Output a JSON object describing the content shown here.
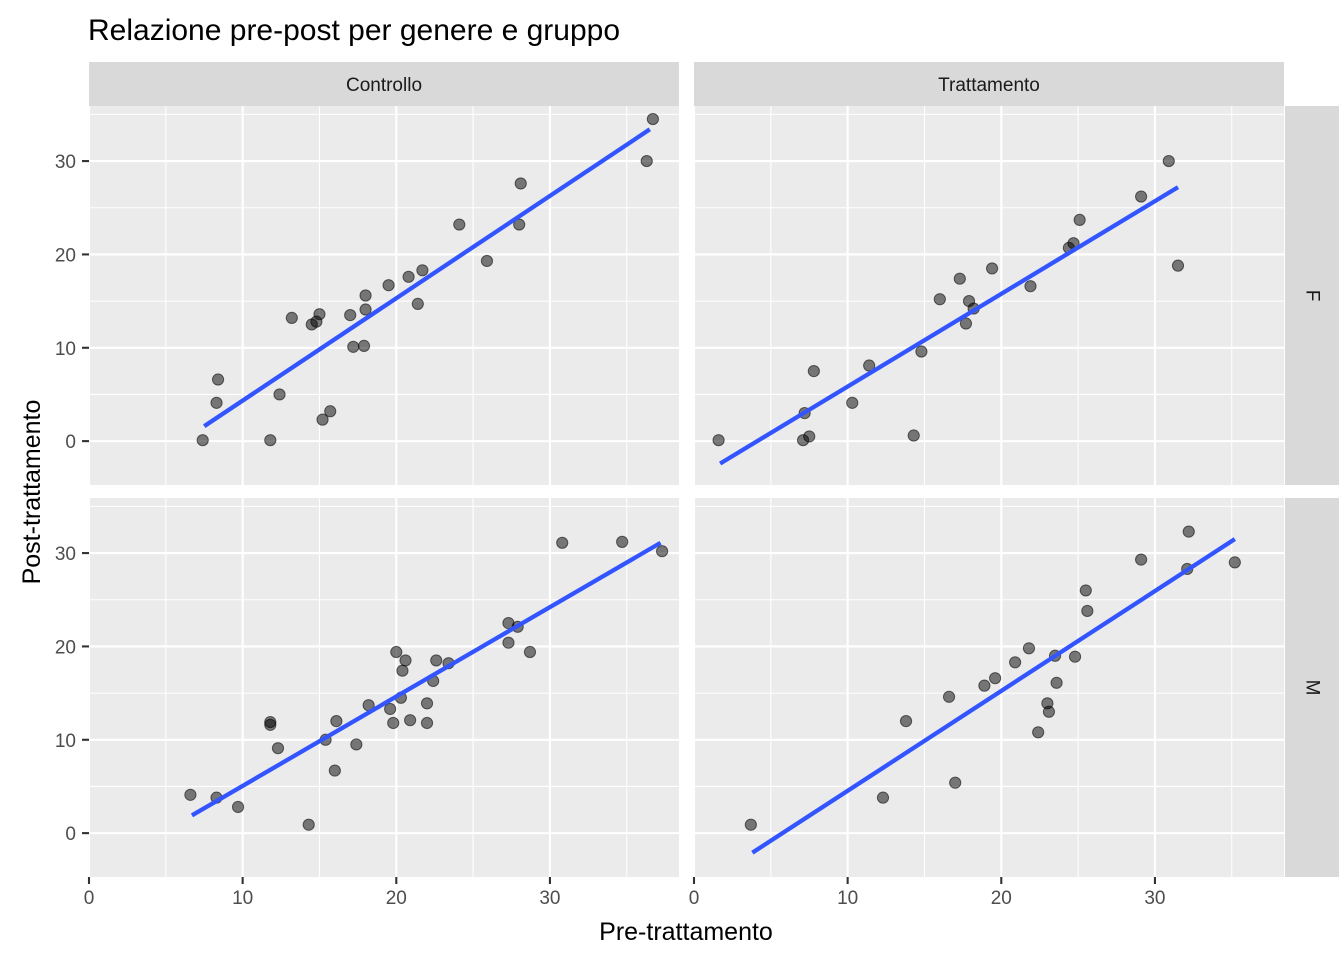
{
  "chart_data": {
    "type": "scatter",
    "title": "Relazione pre-post per genere e gruppo",
    "xlabel": "Pre-trattamento",
    "ylabel": "Post-trattamento",
    "xlim": [
      0,
      38.4
    ],
    "ylim": [
      -4.7,
      35.9
    ],
    "x_ticks": [
      0,
      10,
      20,
      30
    ],
    "y_ticks": [
      0,
      10,
      20,
      30
    ],
    "x_tick_labels": [
      "0",
      "10",
      "20",
      "30"
    ],
    "y_tick_labels": [
      "0",
      "10",
      "20",
      "30"
    ],
    "grid": true,
    "column_facets": [
      "Controllo",
      "Trattamento"
    ],
    "row_facets": [
      "F",
      "M"
    ],
    "colors": {
      "points": "#000000",
      "fit_line": "#3355ff",
      "panel": "#ebebeb",
      "strip": "#d9d9d9"
    },
    "panels": [
      {
        "group": "Controllo",
        "sex": "F",
        "fit": {
          "x": [
            7.5,
            36.5
          ],
          "y": [
            1.6,
            33.4
          ]
        },
        "points": [
          [
            7.4,
            0.1
          ],
          [
            8.3,
            4.1
          ],
          [
            8.4,
            6.6
          ],
          [
            11.8,
            0.1
          ],
          [
            12.4,
            5.0
          ],
          [
            13.2,
            13.2
          ],
          [
            14.5,
            12.5
          ],
          [
            14.8,
            12.8
          ],
          [
            15.0,
            13.6
          ],
          [
            15.2,
            2.3
          ],
          [
            15.7,
            3.2
          ],
          [
            17.0,
            13.5
          ],
          [
            17.2,
            10.1
          ],
          [
            17.9,
            10.2
          ],
          [
            18.0,
            14.1
          ],
          [
            18.0,
            15.6
          ],
          [
            19.5,
            16.7
          ],
          [
            20.8,
            17.6
          ],
          [
            21.4,
            14.7
          ],
          [
            21.7,
            18.3
          ],
          [
            24.1,
            23.2
          ],
          [
            25.9,
            19.3
          ],
          [
            28.0,
            23.2
          ],
          [
            28.1,
            27.6
          ],
          [
            36.3,
            30.0
          ],
          [
            36.7,
            34.5
          ]
        ]
      },
      {
        "group": "Trattamento",
        "sex": "F",
        "fit": {
          "x": [
            1.7,
            31.5
          ],
          "y": [
            -2.4,
            27.2
          ]
        },
        "points": [
          [
            1.6,
            0.1
          ],
          [
            7.1,
            0.1
          ],
          [
            7.2,
            3.0
          ],
          [
            7.5,
            0.5
          ],
          [
            7.8,
            7.5
          ],
          [
            10.3,
            4.1
          ],
          [
            11.4,
            8.1
          ],
          [
            14.3,
            0.6
          ],
          [
            14.8,
            9.6
          ],
          [
            16.0,
            15.2
          ],
          [
            17.3,
            17.4
          ],
          [
            17.7,
            12.6
          ],
          [
            17.9,
            15.0
          ],
          [
            18.2,
            14.2
          ],
          [
            19.4,
            18.5
          ],
          [
            21.9,
            16.6
          ],
          [
            24.4,
            20.7
          ],
          [
            24.7,
            21.2
          ],
          [
            25.1,
            23.7
          ],
          [
            29.1,
            26.2
          ],
          [
            30.9,
            30.0
          ],
          [
            31.5,
            18.8
          ]
        ]
      },
      {
        "group": "Controllo",
        "sex": "M",
        "fit": {
          "x": [
            6.7,
            37.2
          ],
          "y": [
            1.9,
            31.1
          ]
        },
        "points": [
          [
            6.6,
            4.1
          ],
          [
            8.3,
            3.8
          ],
          [
            9.7,
            2.8
          ],
          [
            11.8,
            11.6
          ],
          [
            11.8,
            11.9
          ],
          [
            12.3,
            9.1
          ],
          [
            14.3,
            0.9
          ],
          [
            15.4,
            10.0
          ],
          [
            16.0,
            6.7
          ],
          [
            16.1,
            12.0
          ],
          [
            17.4,
            9.5
          ],
          [
            18.2,
            13.7
          ],
          [
            19.6,
            13.3
          ],
          [
            19.8,
            11.8
          ],
          [
            20.0,
            19.4
          ],
          [
            20.3,
            14.5
          ],
          [
            20.4,
            17.4
          ],
          [
            20.6,
            18.5
          ],
          [
            20.9,
            12.1
          ],
          [
            22.0,
            11.8
          ],
          [
            22.0,
            13.9
          ],
          [
            22.4,
            16.3
          ],
          [
            22.6,
            18.5
          ],
          [
            23.4,
            18.2
          ],
          [
            27.3,
            22.5
          ],
          [
            27.3,
            20.4
          ],
          [
            27.9,
            22.1
          ],
          [
            28.7,
            19.4
          ],
          [
            30.8,
            31.1
          ],
          [
            34.7,
            31.2
          ],
          [
            37.3,
            30.2
          ]
        ]
      },
      {
        "group": "Trattamento",
        "sex": "M",
        "fit": {
          "x": [
            3.8,
            35.2
          ],
          "y": [
            -2.1,
            31.5
          ]
        },
        "points": [
          [
            3.7,
            0.9
          ],
          [
            12.3,
            3.8
          ],
          [
            13.8,
            12.0
          ],
          [
            16.6,
            14.6
          ],
          [
            17.0,
            5.4
          ],
          [
            18.9,
            15.8
          ],
          [
            19.6,
            16.6
          ],
          [
            20.9,
            18.3
          ],
          [
            21.8,
            19.8
          ],
          [
            22.4,
            10.8
          ],
          [
            23.0,
            13.9
          ],
          [
            23.1,
            13.0
          ],
          [
            23.5,
            19.0
          ],
          [
            23.6,
            16.1
          ],
          [
            24.8,
            18.9
          ],
          [
            25.5,
            26.0
          ],
          [
            25.6,
            23.8
          ],
          [
            29.1,
            29.3
          ],
          [
            32.1,
            28.3
          ],
          [
            32.2,
            32.3
          ],
          [
            35.2,
            29.0
          ]
        ]
      }
    ]
  }
}
